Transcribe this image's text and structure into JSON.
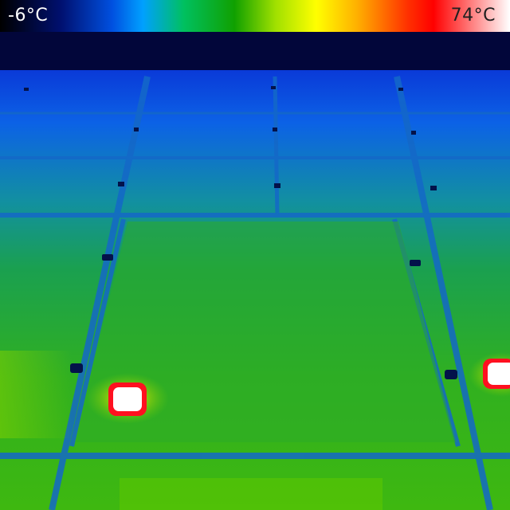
{
  "scale": {
    "min_label": "-6°C",
    "max_label": "74°C",
    "palette": [
      "#000000",
      "#001070",
      "#0050e0",
      "#00a0ff",
      "#00c060",
      "#10a000",
      "#a0e000",
      "#ffff00",
      "#ffb000",
      "#ff3000",
      "#ff0000",
      "#ffffff"
    ]
  },
  "scene": {
    "sky_color": "#02063a",
    "panel_cold_color": "#0c5ae0",
    "panel_mid_color": "#1aa050",
    "panel_warm_color": "#4cc400",
    "hotspot_color": "#ffffff",
    "hotspot_rim_color": "#ff1020"
  }
}
